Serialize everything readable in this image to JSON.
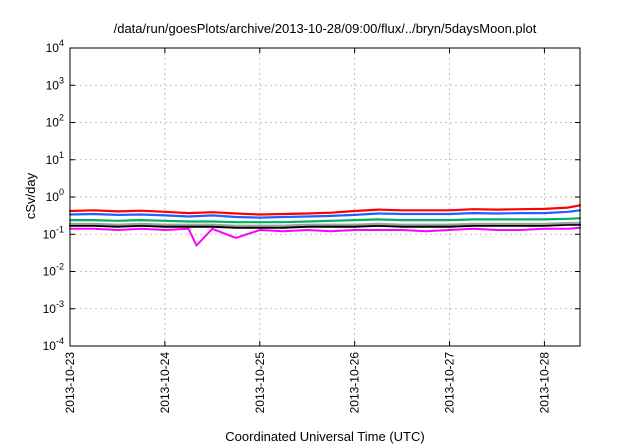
{
  "chart_data": {
    "type": "line",
    "title": "/data/run/goesPlots/archive/2013-10-28/09:00/flux/../bryn/5daysMoon.plot",
    "xlabel": "Coordinated Universal Time (UTC)",
    "ylabel": "cSv/day",
    "yscale": "log",
    "ylim": [
      0.0001,
      10000
    ],
    "y_ticks": [
      {
        "base": "10",
        "exp": "-4",
        "value": 0.0001
      },
      {
        "base": "10",
        "exp": "-3",
        "value": 0.001
      },
      {
        "base": "10",
        "exp": "-2",
        "value": 0.01
      },
      {
        "base": "10",
        "exp": "-1",
        "value": 0.1
      },
      {
        "base": "10",
        "exp": "0",
        "value": 1
      },
      {
        "base": "10",
        "exp": "1",
        "value": 10
      },
      {
        "base": "10",
        "exp": "2",
        "value": 100
      },
      {
        "base": "10",
        "exp": "3",
        "value": 1000
      },
      {
        "base": "10",
        "exp": "4",
        "value": 10000
      }
    ],
    "xlim": [
      "2013-10-23",
      "2013-10-28T09:00"
    ],
    "x_ticks": [
      "2013-10-23",
      "2013-10-24",
      "2013-10-25",
      "2013-10-26",
      "2013-10-27",
      "2013-10-28"
    ],
    "grid": true,
    "series": [
      {
        "color": "#ff00ff",
        "x": [
          "2013-10-23",
          "2013-10-23T06:00",
          "2013-10-23T12:00",
          "2013-10-23T18:00",
          "2013-10-24",
          "2013-10-24T06:00",
          "2013-10-24T08:00",
          "2013-10-24T12:00",
          "2013-10-24T18:00",
          "2013-10-25",
          "2013-10-25T06:00",
          "2013-10-25T12:00",
          "2013-10-25T18:00",
          "2013-10-26",
          "2013-10-26T06:00",
          "2013-10-26T12:00",
          "2013-10-26T18:00",
          "2013-10-27",
          "2013-10-27T06:00",
          "2013-10-27T12:00",
          "2013-10-27T18:00",
          "2013-10-28",
          "2013-10-28T06:00",
          "2013-10-28T09:00"
        ],
        "values": [
          0.14,
          0.14,
          0.13,
          0.14,
          0.13,
          0.14,
          0.05,
          0.14,
          0.08,
          0.13,
          0.12,
          0.13,
          0.12,
          0.13,
          0.13,
          0.13,
          0.12,
          0.13,
          0.14,
          0.13,
          0.13,
          0.14,
          0.14,
          0.15
        ]
      },
      {
        "color": "#000000",
        "x": [
          "2013-10-23",
          "2013-10-23T06:00",
          "2013-10-23T12:00",
          "2013-10-23T18:00",
          "2013-10-24",
          "2013-10-24T06:00",
          "2013-10-24T12:00",
          "2013-10-24T18:00",
          "2013-10-25",
          "2013-10-25T06:00",
          "2013-10-25T12:00",
          "2013-10-25T18:00",
          "2013-10-26",
          "2013-10-26T06:00",
          "2013-10-26T12:00",
          "2013-10-26T18:00",
          "2013-10-27",
          "2013-10-27T06:00",
          "2013-10-27T12:00",
          "2013-10-27T18:00",
          "2013-10-28",
          "2013-10-28T06:00",
          "2013-10-28T09:00"
        ],
        "values": [
          0.17,
          0.17,
          0.16,
          0.17,
          0.16,
          0.16,
          0.16,
          0.15,
          0.15,
          0.15,
          0.16,
          0.16,
          0.16,
          0.17,
          0.16,
          0.16,
          0.16,
          0.17,
          0.17,
          0.17,
          0.17,
          0.18,
          0.18
        ]
      },
      {
        "color": "#a0a0a0",
        "x": [
          "2013-10-23",
          "2013-10-23T06:00",
          "2013-10-23T12:00",
          "2013-10-23T18:00",
          "2013-10-24",
          "2013-10-24T06:00",
          "2013-10-24T12:00",
          "2013-10-24T18:00",
          "2013-10-25",
          "2013-10-25T06:00",
          "2013-10-25T12:00",
          "2013-10-25T18:00",
          "2013-10-26",
          "2013-10-26T06:00",
          "2013-10-26T12:00",
          "2013-10-26T18:00",
          "2013-10-27",
          "2013-10-27T06:00",
          "2013-10-27T12:00",
          "2013-10-27T18:00",
          "2013-10-28",
          "2013-10-28T06:00",
          "2013-10-28T09:00"
        ],
        "values": [
          0.19,
          0.19,
          0.18,
          0.19,
          0.18,
          0.18,
          0.18,
          0.17,
          0.17,
          0.17,
          0.18,
          0.18,
          0.18,
          0.19,
          0.18,
          0.18,
          0.18,
          0.19,
          0.19,
          0.19,
          0.19,
          0.2,
          0.2
        ]
      },
      {
        "color": "#00b060",
        "x": [
          "2013-10-23",
          "2013-10-23T06:00",
          "2013-10-23T12:00",
          "2013-10-23T18:00",
          "2013-10-24",
          "2013-10-24T06:00",
          "2013-10-24T12:00",
          "2013-10-24T18:00",
          "2013-10-25",
          "2013-10-25T06:00",
          "2013-10-25T12:00",
          "2013-10-25T18:00",
          "2013-10-26",
          "2013-10-26T06:00",
          "2013-10-26T12:00",
          "2013-10-26T18:00",
          "2013-10-27",
          "2013-10-27T06:00",
          "2013-10-27T12:00",
          "2013-10-27T18:00",
          "2013-10-28",
          "2013-10-28T06:00",
          "2013-10-28T09:00"
        ],
        "values": [
          0.24,
          0.24,
          0.23,
          0.24,
          0.23,
          0.22,
          0.22,
          0.21,
          0.21,
          0.21,
          0.22,
          0.23,
          0.24,
          0.25,
          0.24,
          0.24,
          0.24,
          0.25,
          0.25,
          0.25,
          0.25,
          0.26,
          0.27
        ]
      },
      {
        "color": "#2060ff",
        "x": [
          "2013-10-23",
          "2013-10-23T06:00",
          "2013-10-23T12:00",
          "2013-10-23T18:00",
          "2013-10-24",
          "2013-10-24T06:00",
          "2013-10-24T12:00",
          "2013-10-24T18:00",
          "2013-10-25",
          "2013-10-25T06:00",
          "2013-10-25T12:00",
          "2013-10-25T18:00",
          "2013-10-26",
          "2013-10-26T06:00",
          "2013-10-26T12:00",
          "2013-10-26T18:00",
          "2013-10-27",
          "2013-10-27T06:00",
          "2013-10-27T12:00",
          "2013-10-27T18:00",
          "2013-10-28",
          "2013-10-28T06:00",
          "2013-10-28T09:00"
        ],
        "values": [
          0.34,
          0.35,
          0.33,
          0.34,
          0.32,
          0.3,
          0.32,
          0.29,
          0.28,
          0.29,
          0.3,
          0.31,
          0.33,
          0.36,
          0.35,
          0.35,
          0.35,
          0.37,
          0.36,
          0.37,
          0.37,
          0.4,
          0.44
        ]
      },
      {
        "color": "#ff0000",
        "x": [
          "2013-10-23",
          "2013-10-23T06:00",
          "2013-10-23T12:00",
          "2013-10-23T18:00",
          "2013-10-24",
          "2013-10-24T06:00",
          "2013-10-24T12:00",
          "2013-10-24T18:00",
          "2013-10-25",
          "2013-10-25T06:00",
          "2013-10-25T12:00",
          "2013-10-25T18:00",
          "2013-10-26",
          "2013-10-26T06:00",
          "2013-10-26T12:00",
          "2013-10-26T18:00",
          "2013-10-27",
          "2013-10-27T06:00",
          "2013-10-27T12:00",
          "2013-10-27T18:00",
          "2013-10-28",
          "2013-10-28T06:00",
          "2013-10-28T09:00"
        ],
        "values": [
          0.42,
          0.44,
          0.41,
          0.43,
          0.4,
          0.37,
          0.39,
          0.36,
          0.34,
          0.35,
          0.36,
          0.38,
          0.42,
          0.46,
          0.44,
          0.44,
          0.44,
          0.47,
          0.46,
          0.47,
          0.48,
          0.52,
          0.6
        ]
      }
    ]
  }
}
